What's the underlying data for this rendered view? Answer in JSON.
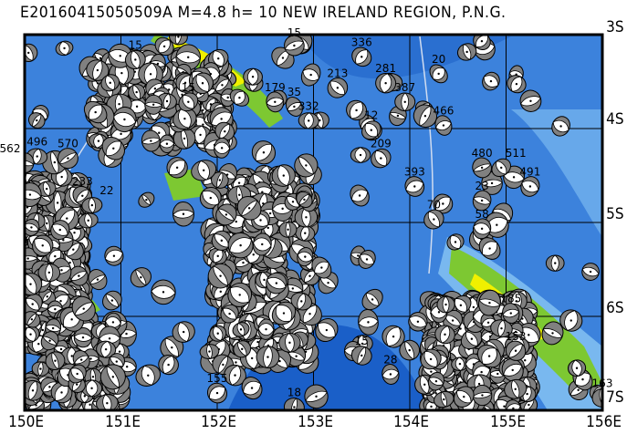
{
  "title": "E20160415050509A M=4.8 h= 10 NEW IRELAND REGION, P.N.G.",
  "map": {
    "lon_range": [
      150,
      156
    ],
    "lat_range": [
      -3,
      -7
    ],
    "lon_ticks": [
      "150E",
      "151E",
      "152E",
      "153E",
      "154E",
      "155E",
      "156E"
    ],
    "lat_ticks": [
      "3S",
      "4S",
      "5S",
      "6S",
      "7S"
    ],
    "grid": true,
    "colors": {
      "deep_sea": "#1a5fc8",
      "sea": "#3c82dc",
      "shallow": "#79b8ef",
      "land_low": "#7dc832",
      "land_high": "#f0f000",
      "peak": "#f08080",
      "ball_fill": "#808080",
      "ball_white": "#ffffff"
    }
  },
  "events": [
    {
      "label": "496",
      "lon": 150.13,
      "lat": -4.18
    },
    {
      "label": "562",
      "lon": 150.0,
      "lat": -4.25
    },
    {
      "label": "570",
      "lon": 150.45,
      "lat": -4.2
    },
    {
      "label": "233",
      "lon": 150.6,
      "lat": -4.6
    },
    {
      "label": "22",
      "lon": 150.7,
      "lat": -4.7
    },
    {
      "label": "15",
      "lon": 151.15,
      "lat": -3.15
    },
    {
      "label": "15",
      "lon": 151.7,
      "lat": -3.6
    },
    {
      "label": "15",
      "lon": 152.8,
      "lat": -3.0
    },
    {
      "label": "336",
      "lon": 153.5,
      "lat": -3.12
    },
    {
      "label": "281",
      "lon": 153.75,
      "lat": -3.4
    },
    {
      "label": "213",
      "lon": 153.25,
      "lat": -3.45
    },
    {
      "label": "387",
      "lon": 153.95,
      "lat": -3.6
    },
    {
      "label": "20",
      "lon": 154.3,
      "lat": -3.3
    },
    {
      "label": "466",
      "lon": 154.35,
      "lat": -3.85
    },
    {
      "label": "12",
      "lon": 153.6,
      "lat": -3.9
    },
    {
      "label": "179",
      "lon": 152.6,
      "lat": -3.6
    },
    {
      "label": "35",
      "lon": 152.8,
      "lat": -3.65
    },
    {
      "label": "332",
      "lon": 152.95,
      "lat": -3.8
    },
    {
      "label": "209",
      "lon": 153.7,
      "lat": -4.2
    },
    {
      "label": "480",
      "lon": 154.75,
      "lat": -4.3
    },
    {
      "label": "511",
      "lon": 154.95,
      "lat": -4.3
    },
    {
      "label": "491",
      "lon": 155.25,
      "lat": -4.5
    },
    {
      "label": "393",
      "lon": 154.05,
      "lat": -4.5
    },
    {
      "label": "23",
      "lon": 154.75,
      "lat": -4.65
    },
    {
      "label": "70",
      "lon": 154.25,
      "lat": -4.85
    },
    {
      "label": "58",
      "lon": 154.75,
      "lat": -4.95
    },
    {
      "label": "185",
      "lon": 155.05,
      "lat": -5.85
    },
    {
      "label": "153",
      "lon": 155.1,
      "lat": -6.25
    },
    {
      "label": "18",
      "lon": 152.8,
      "lat": -6.85
    },
    {
      "label": "155",
      "lon": 152.0,
      "lat": -6.7
    },
    {
      "label": "28",
      "lon": 153.8,
      "lat": -6.5
    },
    {
      "label": "15",
      "lon": 153.5,
      "lat": -6.3
    },
    {
      "label": "163",
      "lon": 156.0,
      "lat": -6.75
    }
  ]
}
